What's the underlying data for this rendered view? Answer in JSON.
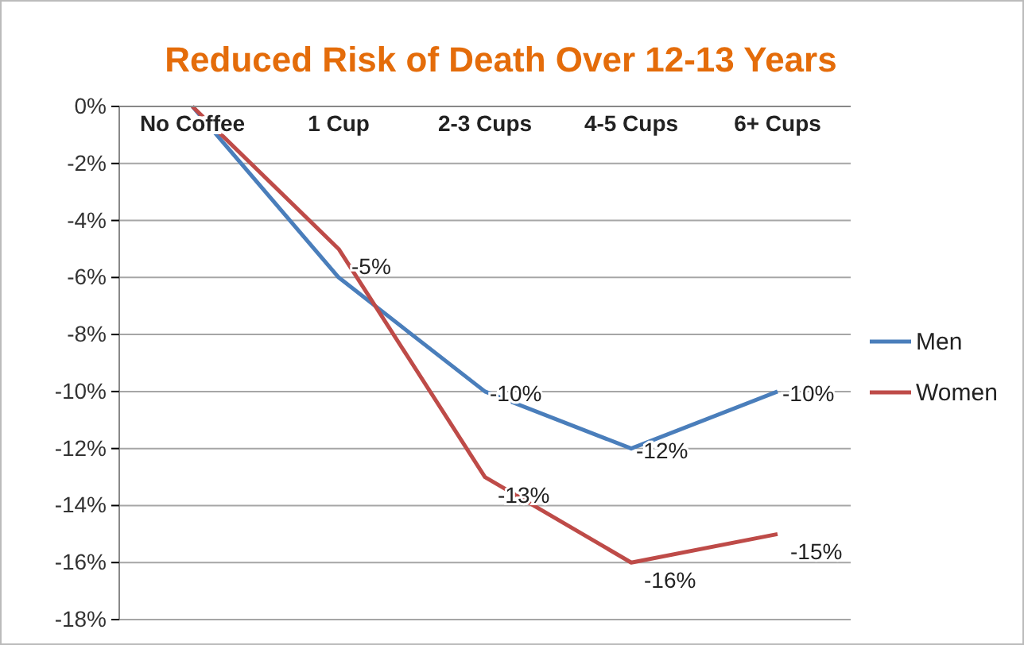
{
  "chart_data": {
    "type": "line",
    "title": "Reduced Risk of Death Over 12-13 Years",
    "categories": [
      "No Coffee",
      "1 Cup",
      "2-3 Cups",
      "4-5 Cups",
      "6+ Cups"
    ],
    "series": [
      {
        "name": "Men",
        "color": "#4a7ebb",
        "values": [
          0,
          -6,
          -10,
          -12,
          -10
        ],
        "value_labels": [
          null,
          null,
          "-10%",
          "-12%",
          "-10%"
        ]
      },
      {
        "name": "Women",
        "color": "#be4b48",
        "values": [
          0,
          -5,
          -13,
          -16,
          -15
        ],
        "value_labels": [
          null,
          "-5%",
          "-13%",
          "-16%",
          "-15%"
        ]
      }
    ],
    "ylim": [
      -18,
      0
    ],
    "yticks": [
      {
        "value": 0,
        "label": "0%"
      },
      {
        "value": -2,
        "label": "-2%"
      },
      {
        "value": -4,
        "label": "-4%"
      },
      {
        "value": -6,
        "label": "-6%"
      },
      {
        "value": -8,
        "label": "-8%"
      },
      {
        "value": -10,
        "label": "-10%"
      },
      {
        "value": -12,
        "label": "-12%"
      },
      {
        "value": -14,
        "label": "-14%"
      },
      {
        "value": -16,
        "label": "-16%"
      },
      {
        "value": -18,
        "label": "-18%"
      }
    ],
    "grid": "y",
    "legend": "right",
    "marker": "none",
    "line_style": "solid"
  }
}
